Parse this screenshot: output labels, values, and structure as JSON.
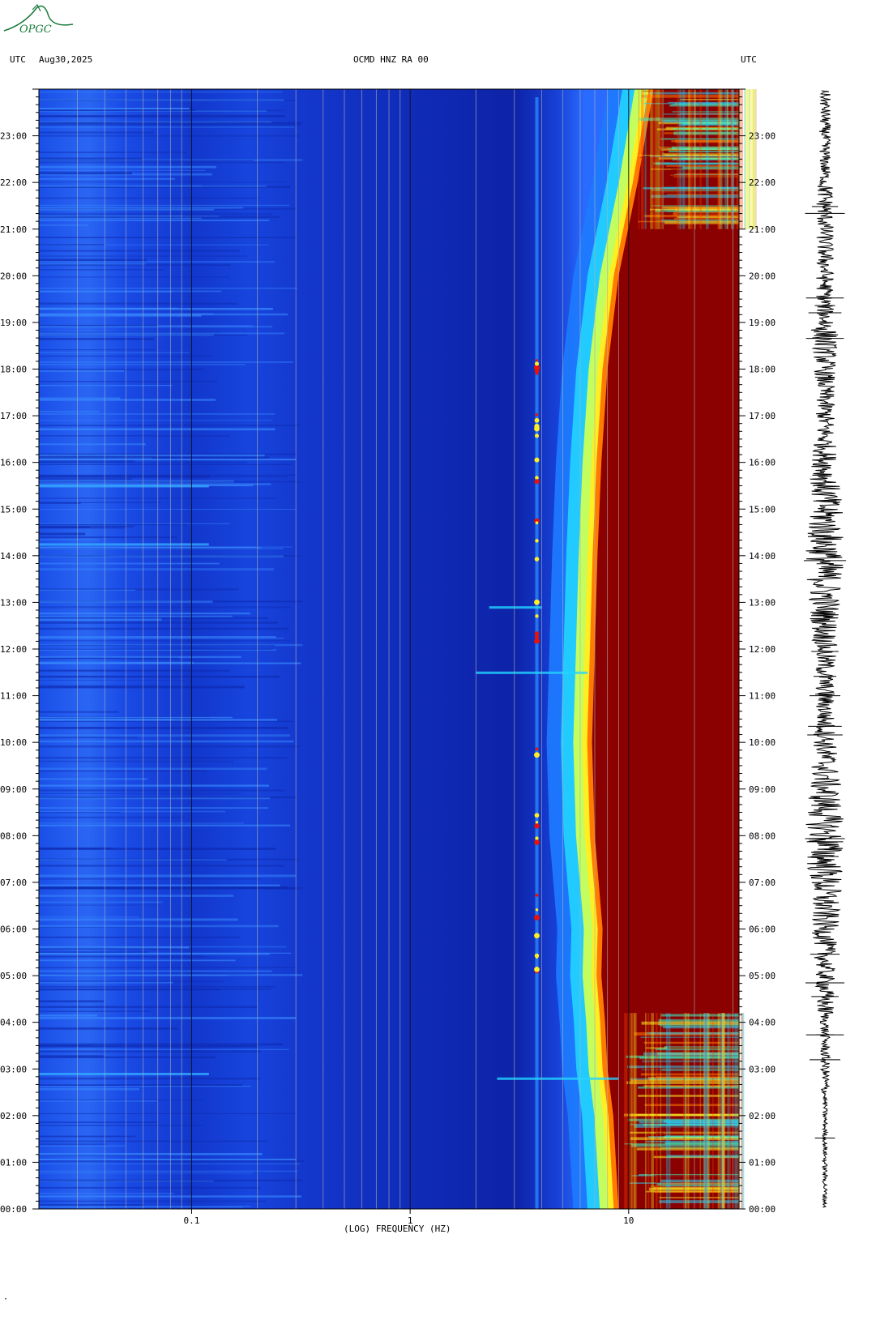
{
  "header": {
    "left_tz": "UTC",
    "date": "Aug30,2025",
    "station": "OCMD HNZ RA 00",
    "right_tz": "UTC"
  },
  "logo": {
    "text": "OPGC",
    "color": "#1a7a3a"
  },
  "footer_mark": "·",
  "chart_data": {
    "type": "heatmap",
    "title": "OCMD HNZ RA 00",
    "xlabel": "(LOG) FREQUENCY (HZ)",
    "ylabel": "UTC",
    "x_scale": "log",
    "xlim": [
      0.02,
      32
    ],
    "x_ticks": [
      {
        "value": 0.1,
        "label": "0.1"
      },
      {
        "value": 1,
        "label": "1"
      },
      {
        "value": 10,
        "label": "10"
      }
    ],
    "ylim": [
      "00:00",
      "24:00"
    ],
    "y_ticks": [
      "00:00",
      "01:00",
      "02:00",
      "03:00",
      "04:00",
      "05:00",
      "06:00",
      "07:00",
      "08:00",
      "09:00",
      "10:00",
      "11:00",
      "12:00",
      "13:00",
      "14:00",
      "15:00",
      "16:00",
      "17:00",
      "18:00",
      "19:00",
      "20:00",
      "21:00",
      "22:00",
      "23:00"
    ],
    "colormap": [
      "#00008b",
      "#0033dd",
      "#0077ff",
      "#22ccff",
      "#88ffcc",
      "#ffff33",
      "#ff8800",
      "#ee1100",
      "#8b0000"
    ],
    "background_color": "#1133cc",
    "saturated_color": "#8b0000",
    "saturation_onset_hz": [
      {
        "hour": 0,
        "hz": 9.0
      },
      {
        "hour": 2,
        "hz": 8.5
      },
      {
        "hour": 3,
        "hz": 8.0
      },
      {
        "hour": 4,
        "hz": 7.8
      },
      {
        "hour": 5,
        "hz": 7.5
      },
      {
        "hour": 6,
        "hz": 7.6
      },
      {
        "hour": 8,
        "hz": 7.0
      },
      {
        "hour": 10,
        "hz": 6.8
      },
      {
        "hour": 12,
        "hz": 7.0
      },
      {
        "hour": 14,
        "hz": 7.2
      },
      {
        "hour": 16,
        "hz": 7.5
      },
      {
        "hour": 18,
        "hz": 8.0
      },
      {
        "hour": 20,
        "hz": 9.0
      },
      {
        "hour": 22,
        "hz": 11.0
      },
      {
        "hour": 24,
        "hz": 13.0
      }
    ],
    "spectral_line_hz": 3.8,
    "grid": true
  }
}
